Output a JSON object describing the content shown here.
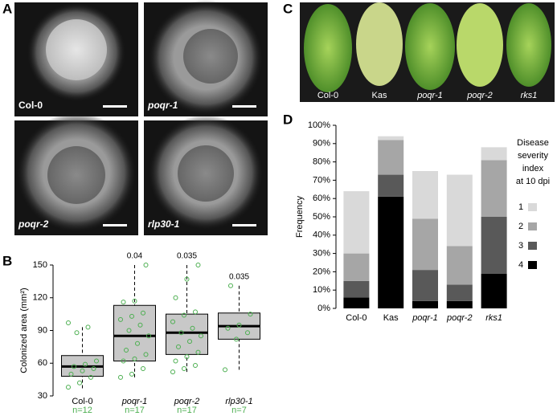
{
  "panel_labels": [
    "A",
    "B",
    "C",
    "D"
  ],
  "photo_a": {
    "labels": [
      "Col-0",
      "poqr-1",
      "poqr-2",
      "rlp30-1"
    ],
    "italic": [
      false,
      true,
      true,
      true
    ]
  },
  "photo_c": {
    "labels": [
      "Col-0",
      "Kas",
      "poqr-1",
      "poqr-2",
      "rks1"
    ],
    "italic": [
      false,
      false,
      true,
      true,
      true
    ]
  },
  "chart_data": [
    {
      "type": "box",
      "ylabel": "Colonized area (mm²)",
      "categories": [
        "Col-0",
        "poqr-1",
        "poqr-2",
        "rlp30-1"
      ],
      "italic": [
        false,
        true,
        true,
        true
      ],
      "n_labels": [
        "n=12",
        "n=17",
        "n=17",
        "n=7"
      ],
      "p_values": [
        null,
        0.04,
        0.035,
        0.035
      ],
      "boxes": [
        {
          "whislo": 37,
          "q1": 48,
          "med": 57,
          "q3": 67,
          "whishi": 93
        },
        {
          "whislo": 47,
          "q1": 62,
          "med": 85,
          "q3": 113,
          "whishi": 150
        },
        {
          "whislo": 52,
          "q1": 68,
          "med": 88,
          "q3": 105,
          "whishi": 150
        },
        {
          "whislo": 54,
          "q1": 82,
          "med": 94,
          "q3": 106,
          "whishi": 131
        }
      ],
      "points": [
        [
          38,
          42,
          47,
          50,
          53,
          55,
          57,
          59,
          62,
          88,
          93,
          97
        ],
        [
          47,
          50,
          55,
          62,
          64,
          68,
          72,
          78,
          85,
          90,
          95,
          100,
          103,
          106,
          116,
          117,
          150
        ],
        [
          52,
          55,
          58,
          62,
          66,
          70,
          75,
          80,
          85,
          88,
          92,
          98,
          104,
          107,
          120,
          137,
          150
        ],
        [
          54,
          82,
          88,
          92,
          95,
          105,
          131
        ]
      ],
      "point_color": "#4caf50",
      "box_color": "#c8c8c8",
      "n_color": "#4caf50",
      "ylim": [
        30,
        150
      ],
      "yticks": [
        30,
        60,
        90,
        120,
        150
      ]
    },
    {
      "type": "stacked_bar",
      "ylabel": "Frequency",
      "categories": [
        "Col-0",
        "Kas",
        "poqr-1",
        "poqr-2",
        "rks1"
      ],
      "italic": [
        false,
        false,
        true,
        true,
        true
      ],
      "legend_title": [
        "Disease",
        "severity",
        "index",
        "at 10 dpi"
      ],
      "series": [
        {
          "name": "4",
          "color": "#000000",
          "values": [
            6,
            61,
            4,
            4,
            19
          ]
        },
        {
          "name": "3",
          "color": "#595959",
          "values": [
            9,
            12,
            17,
            9,
            31
          ]
        },
        {
          "name": "2",
          "color": "#a6a6a6",
          "values": [
            15,
            19,
            28,
            21,
            31
          ]
        },
        {
          "name": "1",
          "color": "#d9d9d9",
          "values": [
            34,
            2,
            26,
            39,
            7
          ]
        }
      ],
      "ylim": [
        0,
        100
      ],
      "yticks": [
        {
          "value": 0,
          "label": "0%"
        },
        {
          "value": 10,
          "label": "10%"
        },
        {
          "value": 20,
          "label": "20%"
        },
        {
          "value": 30,
          "label": "30%"
        },
        {
          "value": 40,
          "label": "40%"
        },
        {
          "value": 50,
          "label": "50%"
        },
        {
          "value": 60,
          "label": "60%"
        },
        {
          "value": 70,
          "label": "70%"
        },
        {
          "value": 80,
          "label": "80%"
        },
        {
          "value": 90,
          "label": "90%"
        },
        {
          "value": 100,
          "label": "100%"
        }
      ]
    }
  ]
}
